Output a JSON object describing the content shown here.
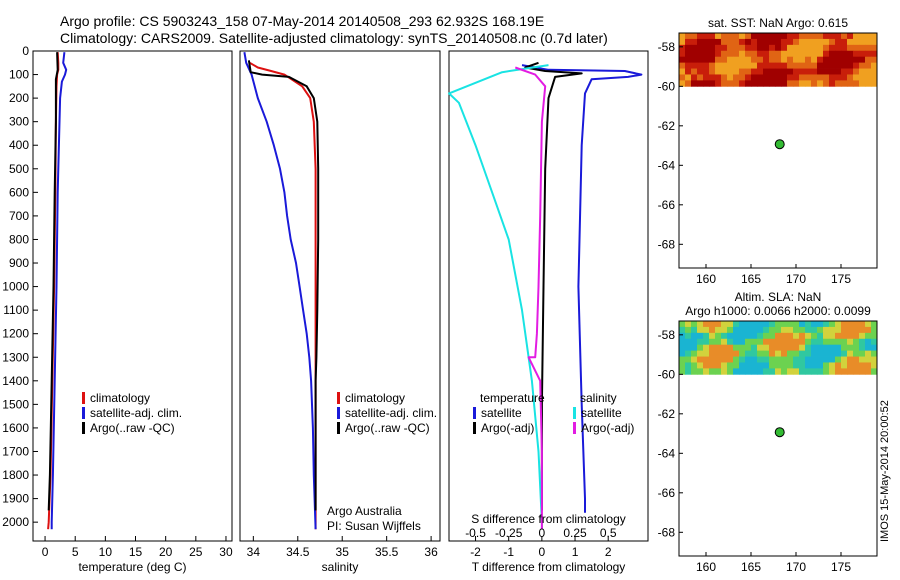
{
  "title_line1": "Argo profile: CS 5903243_158 07-May-2014 20140508_293 62.932S 168.19E",
  "title_line2": "Climatology: CARS2009. Satellite-adjusted climatology: synTS_20140508.nc (0.7d later)",
  "footer_vertical": "IMOS 15-May-2014 20:00:52",
  "colors": {
    "climatology": "#dd1111",
    "satellite": "#1a1ad9",
    "argo": "#000000",
    "s_satellite": "#19e3e3",
    "s_argo": "#e21ce2",
    "marker": "#33bb33"
  },
  "chart_data": [
    {
      "id": "temp_panel",
      "type": "line",
      "xlabel": "temperature (deg C)",
      "ylabel": "",
      "xlim": [
        -2,
        31
      ],
      "ylim": [
        2080,
        0
      ],
      "xticks": [
        0,
        5,
        10,
        15,
        20,
        25,
        30
      ],
      "yticks": [
        0,
        100,
        200,
        300,
        400,
        500,
        600,
        700,
        800,
        900,
        1000,
        1100,
        1200,
        1300,
        1400,
        1500,
        1600,
        1700,
        1800,
        1900,
        2000
      ],
      "legend": [
        "climatology",
        "satellite-adj. clim.",
        "Argo(..raw -QC)"
      ],
      "legend_position": "lower-middle",
      "series": [
        {
          "name": "climatology",
          "color": "#dd1111",
          "points": [
            [
              2.1,
              5
            ],
            [
              2.2,
              50
            ],
            [
              2.2,
              80
            ],
            [
              2.0,
              100
            ],
            [
              1.9,
              150
            ],
            [
              1.8,
              300
            ],
            [
              1.7,
              600
            ],
            [
              1.5,
              1000
            ],
            [
              1.2,
              1400
            ],
            [
              0.9,
              1800
            ],
            [
              0.6,
              2000
            ],
            [
              0.5,
              2030
            ]
          ]
        },
        {
          "name": "satellite-adj. clim.",
          "color": "#1a1ad9",
          "points": [
            [
              3.2,
              5
            ],
            [
              3.0,
              50
            ],
            [
              3.5,
              80
            ],
            [
              3.3,
              100
            ],
            [
              2.8,
              130
            ],
            [
              2.5,
              200
            ],
            [
              2.4,
              300
            ],
            [
              2.1,
              600
            ],
            [
              1.9,
              1000
            ],
            [
              1.6,
              1400
            ],
            [
              1.3,
              1800
            ],
            [
              1.1,
              2000
            ],
            [
              1.1,
              2030
            ]
          ]
        },
        {
          "name": "Argo(..raw -QC)",
          "color": "#000000",
          "points": [
            [
              2.0,
              5
            ],
            [
              2.1,
              80
            ],
            [
              1.8,
              120
            ],
            [
              1.8,
              300
            ],
            [
              1.6,
              600
            ],
            [
              1.4,
              1000
            ],
            [
              1.1,
              1400
            ],
            [
              0.8,
              1800
            ],
            [
              0.6,
              1950
            ]
          ]
        }
      ]
    },
    {
      "id": "sal_panel",
      "type": "line",
      "xlabel": "salinity",
      "xlim": [
        33.85,
        36.1
      ],
      "ylim": [
        2080,
        0
      ],
      "xticks": [
        34,
        34.5,
        35,
        35.5,
        36
      ],
      "legend": [
        "climatology",
        "satellite-adj. clim.",
        "Argo(..raw -QC)"
      ],
      "legend_position": "lower-middle",
      "annotation": [
        "Argo Australia",
        "PI: Susan Wijffels"
      ],
      "series": [
        {
          "name": "climatology",
          "color": "#dd1111",
          "points": [
            [
              33.96,
              50
            ],
            [
              34.05,
              70
            ],
            [
              34.2,
              85
            ],
            [
              34.35,
              100
            ],
            [
              34.55,
              150
            ],
            [
              34.64,
              200
            ],
            [
              34.68,
              300
            ],
            [
              34.7,
              500
            ],
            [
              34.7,
              800
            ],
            [
              34.7,
              1100
            ],
            [
              34.7,
              1400
            ],
            [
              34.7,
              1700
            ],
            [
              34.7,
              2000
            ],
            [
              34.7,
              2030
            ]
          ]
        },
        {
          "name": "satellite-adj. clim.",
          "color": "#1a1ad9",
          "points": [
            [
              33.9,
              5
            ],
            [
              33.92,
              50
            ],
            [
              33.98,
              100
            ],
            [
              34.05,
              200
            ],
            [
              34.15,
              300
            ],
            [
              34.23,
              400
            ],
            [
              34.3,
              500
            ],
            [
              34.35,
              600
            ],
            [
              34.38,
              700
            ],
            [
              34.42,
              800
            ],
            [
              34.48,
              900
            ],
            [
              34.52,
              1000
            ],
            [
              34.56,
              1100
            ],
            [
              34.6,
              1200
            ],
            [
              34.63,
              1300
            ],
            [
              34.65,
              1400
            ],
            [
              34.67,
              1600
            ],
            [
              34.68,
              1800
            ],
            [
              34.7,
              2030
            ]
          ]
        },
        {
          "name": "Argo(..raw -QC)",
          "color": "#000000",
          "points": [
            [
              33.95,
              40
            ],
            [
              33.97,
              90
            ],
            [
              34.1,
              100
            ],
            [
              34.4,
              110
            ],
            [
              34.6,
              150
            ],
            [
              34.68,
              200
            ],
            [
              34.72,
              300
            ],
            [
              34.73,
              500
            ],
            [
              34.73,
              800
            ],
            [
              34.72,
              1100
            ],
            [
              34.71,
              1300
            ],
            [
              34.7,
              1400
            ],
            [
              34.7,
              1700
            ],
            [
              34.7,
              1950
            ]
          ]
        }
      ]
    },
    {
      "id": "diff_panel",
      "type": "line",
      "xlabel": "T difference from climatology",
      "xlabel_top": "S difference from climatology",
      "xlim": [
        -2.8,
        3.2
      ],
      "ylim": [
        2080,
        0
      ],
      "xticks": [
        -2,
        -1,
        0,
        1,
        2
      ],
      "s_xticks": [
        -0.5,
        -0.25,
        0,
        0.25,
        0.5
      ],
      "s_xticklabels": [
        "-0.5",
        "-0.25",
        "0",
        "0.25",
        "0.5"
      ],
      "legend_headers": [
        "temperature",
        "salinity"
      ],
      "legend": [
        "satellite",
        "Argo(-adj)",
        "satellite",
        "Argo(-adj)"
      ],
      "legend_position": "lower-middle",
      "series": [
        {
          "name": "T satellite",
          "color": "#1a1ad9",
          "points": [
            [
              -0.6,
              60
            ],
            [
              0.2,
              80
            ],
            [
              2.5,
              85
            ],
            [
              3.0,
              100
            ],
            [
              2.6,
              110
            ],
            [
              1.5,
              120
            ],
            [
              1.3,
              180
            ],
            [
              1.2,
              400
            ],
            [
              1.1,
              1000
            ],
            [
              1.2,
              1500
            ],
            [
              1.3,
              1900
            ],
            [
              1.3,
              1960
            ]
          ]
        },
        {
          "name": "T Argo(-adj)",
          "color": "#000000",
          "points": [
            [
              -0.1,
              50
            ],
            [
              -0.5,
              70
            ],
            [
              0.1,
              85
            ],
            [
              1.2,
              95
            ],
            [
              0.4,
              110
            ],
            [
              0.2,
              200
            ],
            [
              0.1,
              500
            ],
            [
              0.05,
              1000
            ],
            [
              0.0,
              1500
            ],
            [
              0.0,
              1950
            ]
          ]
        },
        {
          "name": "S satellite",
          "color": "#19e3e3",
          "points": [
            [
              0.2,
              60
            ],
            [
              -1.2,
              90
            ],
            [
              -2.8,
              180
            ],
            [
              -2.5,
              220
            ],
            [
              -2.0,
              400
            ],
            [
              -1.5,
              600
            ],
            [
              -1.0,
              800
            ],
            [
              -0.6,
              1100
            ],
            [
              -0.3,
              1400
            ],
            [
              -0.1,
              1700
            ],
            [
              0,
              2000
            ],
            [
              0,
              2030
            ]
          ]
        },
        {
          "name": "S Argo(-adj)",
          "color": "#e21ce2",
          "points": [
            [
              -0.8,
              70
            ],
            [
              -0.2,
              100
            ],
            [
              0.1,
              150
            ],
            [
              0.0,
              300
            ],
            [
              -0.05,
              700
            ],
            [
              -0.1,
              1000
            ],
            [
              -0.15,
              1200
            ],
            [
              -0.2,
              1300
            ],
            [
              -0.4,
              1300
            ],
            [
              -0.05,
              1400
            ],
            [
              0,
              1700
            ],
            [
              0,
              2000
            ],
            [
              0,
              2030
            ]
          ]
        }
      ]
    },
    {
      "id": "sst_map",
      "type": "heatmap",
      "title": "sat. SST: NaN  Argo: 0.615",
      "xlim": [
        157,
        179
      ],
      "ylim": [
        -69.2,
        -57.3
      ],
      "xticks": [
        160,
        165,
        170,
        175
      ],
      "yticks": [
        -58,
        -60,
        -62,
        -64,
        -66,
        -68
      ],
      "data_lat_range": [
        -60,
        -57.3
      ],
      "palette": [
        "#a00000",
        "#c81e0a",
        "#e06414",
        "#f0a020"
      ],
      "argo_position": [
        168.19,
        -62.932
      ]
    },
    {
      "id": "sla_map",
      "type": "heatmap",
      "title_lines": [
        "Altim. SLA: NaN",
        "Argo h1000: 0.0066 h2000: 0.0099"
      ],
      "xlim": [
        157,
        179
      ],
      "ylim": [
        -69.2,
        -57.3
      ],
      "xticks": [
        160,
        165,
        170,
        175
      ],
      "yticks": [
        -58,
        -60,
        -62,
        -64,
        -66,
        -68
      ],
      "data_lat_range": [
        -60,
        -57.3
      ],
      "palette": [
        "#1ab4d2",
        "#30c8a0",
        "#6cd250",
        "#d2d23c",
        "#e88c28"
      ],
      "argo_position": [
        168.19,
        -62.932
      ]
    }
  ]
}
